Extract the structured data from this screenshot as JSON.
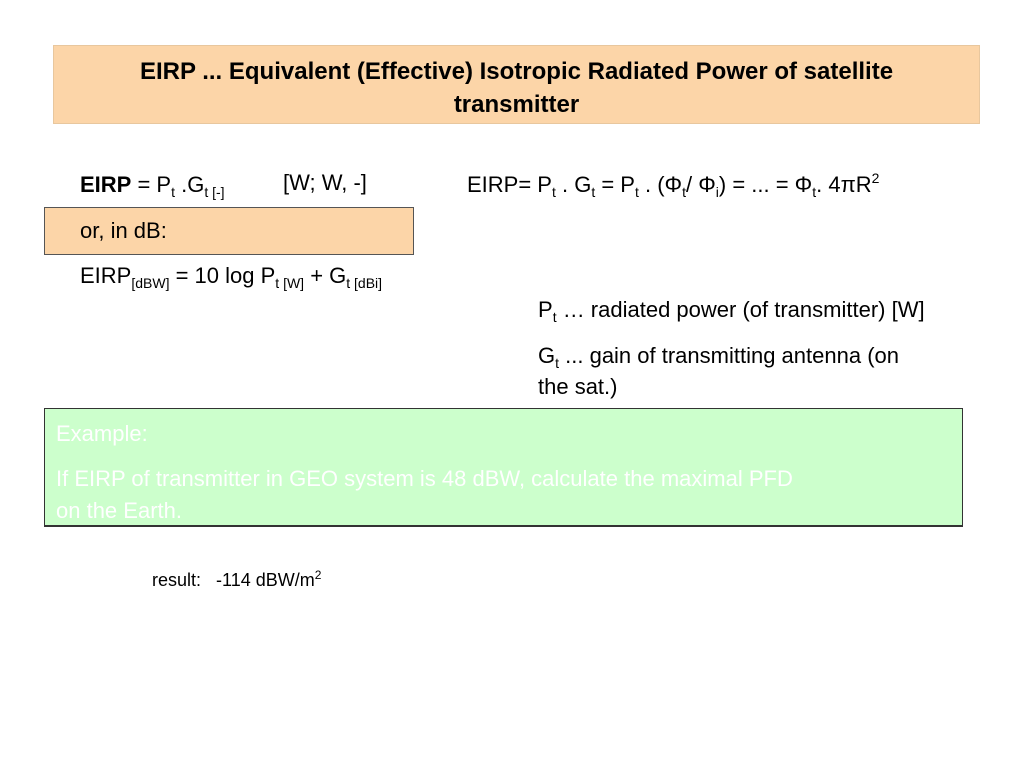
{
  "title": {
    "line1_bold_prefix": "EIRP",
    "line1_sep": " ... ",
    "line1_rest": "Equivalent (Effective) Isotropic Radiated Power of satellite",
    "line2": "transmitter"
  },
  "formula_linear": {
    "lhs": "EIRP",
    "eq": " = P",
    "sub1": "t",
    "mid": " .G",
    "sub2": "t [-]",
    "units": "[W; W, -]"
  },
  "formula_flux": {
    "p1": "EIRP= P",
    "s1": "t",
    "p2": " . G",
    "s2": "t",
    "p3": " = P",
    "s3": "t",
    "p4": " . (Φ",
    "s4": "t",
    "p5": "/ Φ",
    "s5": "i",
    "p6": ") = ... = Φ",
    "s6": "t",
    "p7": ". 4πR",
    "sup7": "2"
  },
  "db_box": {
    "label": "or, in dB:"
  },
  "formula_db": {
    "p1": "EIRP",
    "s1": "[dBW]",
    "p2": " = 10 log P",
    "s2": "t [W]",
    "p3": " + G",
    "s3": "t [dBi]"
  },
  "definitions": [
    {
      "sym": "P",
      "sub": "t",
      "text": " … radiated power (of transmitter) [W]"
    },
    {
      "sym": "G",
      "sub": "t",
      "text": " ... gain of transmitting antenna (on",
      "text2": "the sat.)"
    }
  ],
  "example": {
    "heading": "Example:",
    "line1": "If EIRP of transmitter in GEO system  is 48 dBW, calculate the maximal  PFD",
    "line2": "on the Earth."
  },
  "result": {
    "label": "result:",
    "value": "-114 dBW/m",
    "sup": "2"
  },
  "colors": {
    "title_bg": "#fcd5a8",
    "example_bg": "#ccffcc",
    "example_text": "#ffffff"
  }
}
